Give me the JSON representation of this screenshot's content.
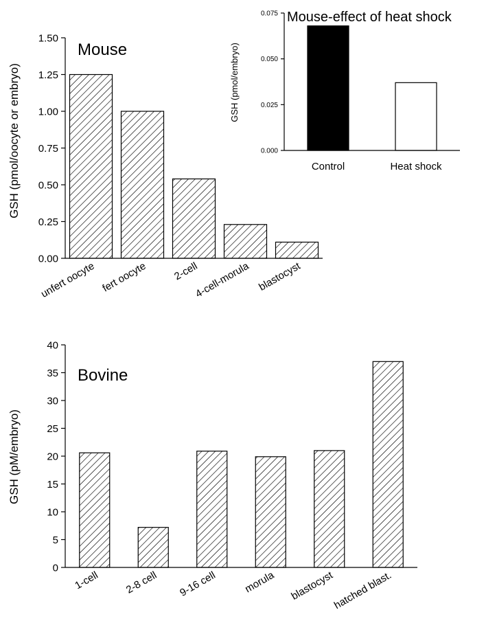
{
  "chart_data": [
    {
      "type": "bar",
      "panel_label": "Mouse",
      "ylabel": "GSH (pmol/oocyte or embryo)",
      "categories": [
        "unfert oocyte",
        "fert oocyte",
        "2-cell",
        "4-cell-morula",
        "blastocyst"
      ],
      "values": [
        1.25,
        1.0,
        0.54,
        0.23,
        0.11
      ],
      "ylim": [
        0,
        1.5
      ],
      "yticks": [
        "0.00",
        "0.25",
        "0.50",
        "0.75",
        "1.00",
        "1.25",
        "1.50"
      ],
      "fill": "hatched",
      "grid": false
    },
    {
      "type": "bar",
      "title": "Mouse-effect of heat shock",
      "ylabel": "GSH (pmol/embryo)",
      "categories": [
        "Control",
        "Heat shock"
      ],
      "values": [
        0.068,
        0.037
      ],
      "ylim": [
        0,
        0.075
      ],
      "yticks": [
        "0.000",
        "0.025",
        "0.050",
        "0.075"
      ],
      "fills": [
        "#000000",
        "#ffffff"
      ],
      "grid": false
    },
    {
      "type": "bar",
      "panel_label": "Bovine",
      "ylabel": "GSH (pM/embryo)",
      "categories": [
        "1-cell",
        "2-8 cell",
        "9-16 cell",
        "morula",
        "blastocyst",
        "hatched blast."
      ],
      "values": [
        20.6,
        7.2,
        20.9,
        19.9,
        21.0,
        37.0
      ],
      "ylim": [
        0,
        40
      ],
      "yticks": [
        "0",
        "5",
        "10",
        "15",
        "20",
        "25",
        "30",
        "35",
        "40"
      ],
      "fill": "hatched",
      "grid": false
    }
  ]
}
